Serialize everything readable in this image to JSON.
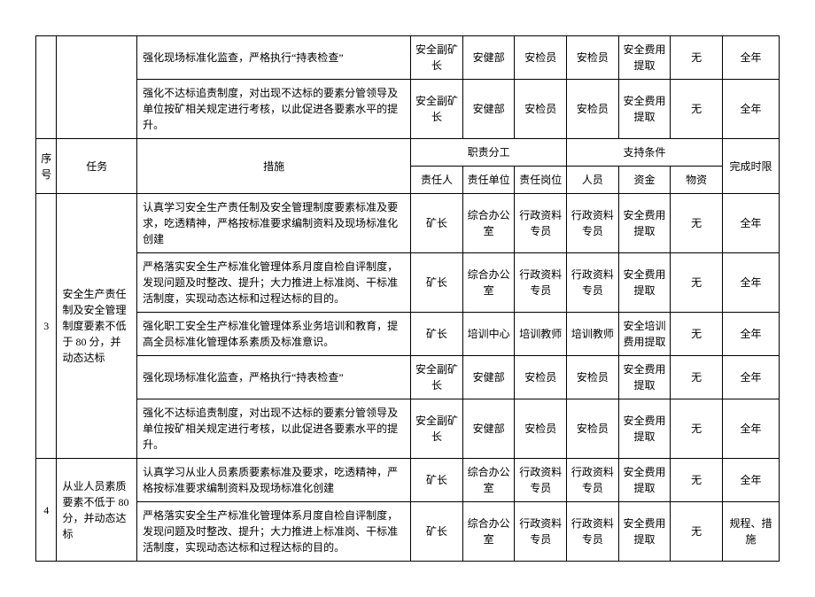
{
  "headers": {
    "seq": "序号",
    "task": "任务",
    "measure": "措施",
    "duty_group": "职责分工",
    "support_group": "支持条件",
    "deadline": "完成时限",
    "responsible_person": "责任人",
    "responsible_unit": "责任单位",
    "responsible_post": "责任岗位",
    "personnel": "人员",
    "fund": "资金",
    "material": "物资"
  },
  "top_rows": [
    {
      "measure": "强化现场标准化监查，严格执行“持表检查”",
      "person": "安全副矿长",
      "unit": "安健部",
      "post": "安检员",
      "personnel": "安检员",
      "fund": "安全费用提取",
      "material": "无",
      "deadline": "全年"
    },
    {
      "measure": "强化不达标追责制度，对出现不达标的要素分管领导及单位按矿相关规定进行考核，以此促进各要素水平的提升。",
      "person": "安全副矿长",
      "unit": "安健部",
      "post": "安检员",
      "personnel": "安检员",
      "fund": "安全费用提取",
      "material": "无",
      "deadline": "全年"
    }
  ],
  "group3": {
    "idx": "3",
    "task": "安全生产责任制及安全管理制度要素不低于 80 分，并动态达标",
    "rows": [
      {
        "measure": "认真学习安全生产责任制及安全管理制度要素标准及要求，吃透精神，严格按标准要求编制资料及现场标准化创建",
        "person": "矿长",
        "unit": "综合办公室",
        "post": "行政资料专员",
        "personnel": "行政资料专员",
        "fund": "安全费用提取",
        "material": "无",
        "deadline": "全年"
      },
      {
        "measure": "严格落实安全生产标准化管理体系月度自检自评制度，发现问题及时整改、提升；大力推进上标准岗、干标准活制度，实现动态达标和过程达标的目的。",
        "person": "矿长",
        "unit": "综合办公室",
        "post": "行政资料专员",
        "personnel": "行政资料专员",
        "fund": "安全费用提取",
        "material": "无",
        "deadline": "全年"
      },
      {
        "measure": "强化职工安全生产标准化管理体系业务培训和教育，提高全员标准化管理体系素质及标准意识。",
        "person": "矿长",
        "unit": "培训中心",
        "post": "培训教师",
        "personnel": "培训教师",
        "fund": "安全培训费用提取",
        "material": "无",
        "deadline": "全年"
      },
      {
        "measure": "强化现场标准化监查，严格执行“持表检查”",
        "person": "安全副矿长",
        "unit": "安健部",
        "post": "安检员",
        "personnel": "安检员",
        "fund": "安全费用提取",
        "material": "无",
        "deadline": "全年"
      },
      {
        "measure": "强化不达标追责制度，对出现不达标的要素分管领导及单位按矿相关规定进行考核，以此促进各要素水平的提升。",
        "person": "安全副矿长",
        "unit": "安健部",
        "post": "安检员",
        "personnel": "安检员",
        "fund": "安全费用提取",
        "material": "无",
        "deadline": "全年"
      }
    ]
  },
  "group4": {
    "idx": "4",
    "task": "从业人员素质要素不低于 80分，并动态达标",
    "rows": [
      {
        "measure": "认真学习从业人员素质要素标准及要求，吃透精神，严格按标准要求编制资料及现场标准化创建",
        "person": "矿长",
        "unit": "综合办公室",
        "post": "行政资料专员",
        "personnel": "行政资料专员",
        "fund": "安全费用提取",
        "material": "无",
        "deadline": "全年"
      },
      {
        "measure": "严格落实安全生产标准化管理体系月度自检自评制度，发现问题及时整改、提升；大力推进上标准岗、干标准活制度，实现动态达标和过程达标的目的。",
        "person": "矿长",
        "unit": "综合办公室",
        "post": "行政资料专员",
        "personnel": "行政资料专员",
        "fund": "安全费用提取",
        "material": "无",
        "deadline": "规程、措施"
      }
    ]
  }
}
